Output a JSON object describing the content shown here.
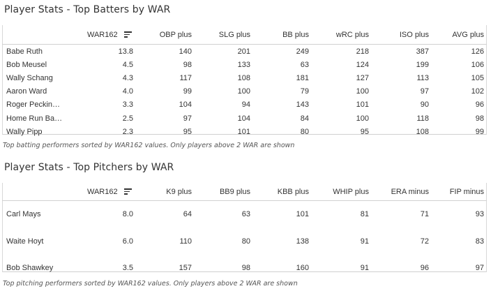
{
  "batters": {
    "title": "Player Stats - Top Batters by WAR",
    "columns": [
      "",
      "WAR162",
      "OBP plus",
      "SLG plus",
      "BB plus",
      "wRC plus",
      "ISO plus",
      "AVG plus"
    ],
    "rows": [
      [
        "Babe Ruth",
        "13.8",
        "140",
        "201",
        "249",
        "218",
        "387",
        "126"
      ],
      [
        "Bob Meusel",
        "4.5",
        "98",
        "133",
        "63",
        "124",
        "199",
        "106"
      ],
      [
        "Wally Schang",
        "4.3",
        "117",
        "108",
        "181",
        "127",
        "113",
        "105"
      ],
      [
        "Aaron Ward",
        "4.0",
        "99",
        "100",
        "79",
        "100",
        "97",
        "102"
      ],
      [
        "Roger Peckinpaug..",
        "3.3",
        "104",
        "94",
        "143",
        "101",
        "90",
        "96"
      ],
      [
        "Home Run Baker",
        "2.5",
        "97",
        "104",
        "84",
        "100",
        "118",
        "98"
      ],
      [
        "Wally Pipp",
        "2.3",
        "95",
        "101",
        "80",
        "95",
        "108",
        "99"
      ]
    ],
    "caption": "Top batting performers sorted by WAR162 values. Only players above 2 WAR are shown"
  },
  "pitchers": {
    "title": "Player Stats - Top Pitchers by WAR",
    "columns": [
      "",
      "WAR162",
      "K9 plus",
      "BB9 plus",
      "KBB plus",
      "WHIP plus",
      "ERA minus",
      "FIP minus"
    ],
    "rows": [
      [
        "Carl Mays",
        "8.0",
        "64",
        "63",
        "101",
        "81",
        "71",
        "93"
      ],
      [
        "Waite Hoyt",
        "6.0",
        "110",
        "80",
        "138",
        "91",
        "72",
        "83"
      ],
      [
        "Bob Shawkey",
        "3.5",
        "157",
        "98",
        "160",
        "91",
        "96",
        "97"
      ]
    ],
    "caption": "Top pitching performers sorted by WAR162 values. Only players above 2 WAR are shown"
  },
  "icons": {
    "sort": "sort-descending-icon"
  }
}
